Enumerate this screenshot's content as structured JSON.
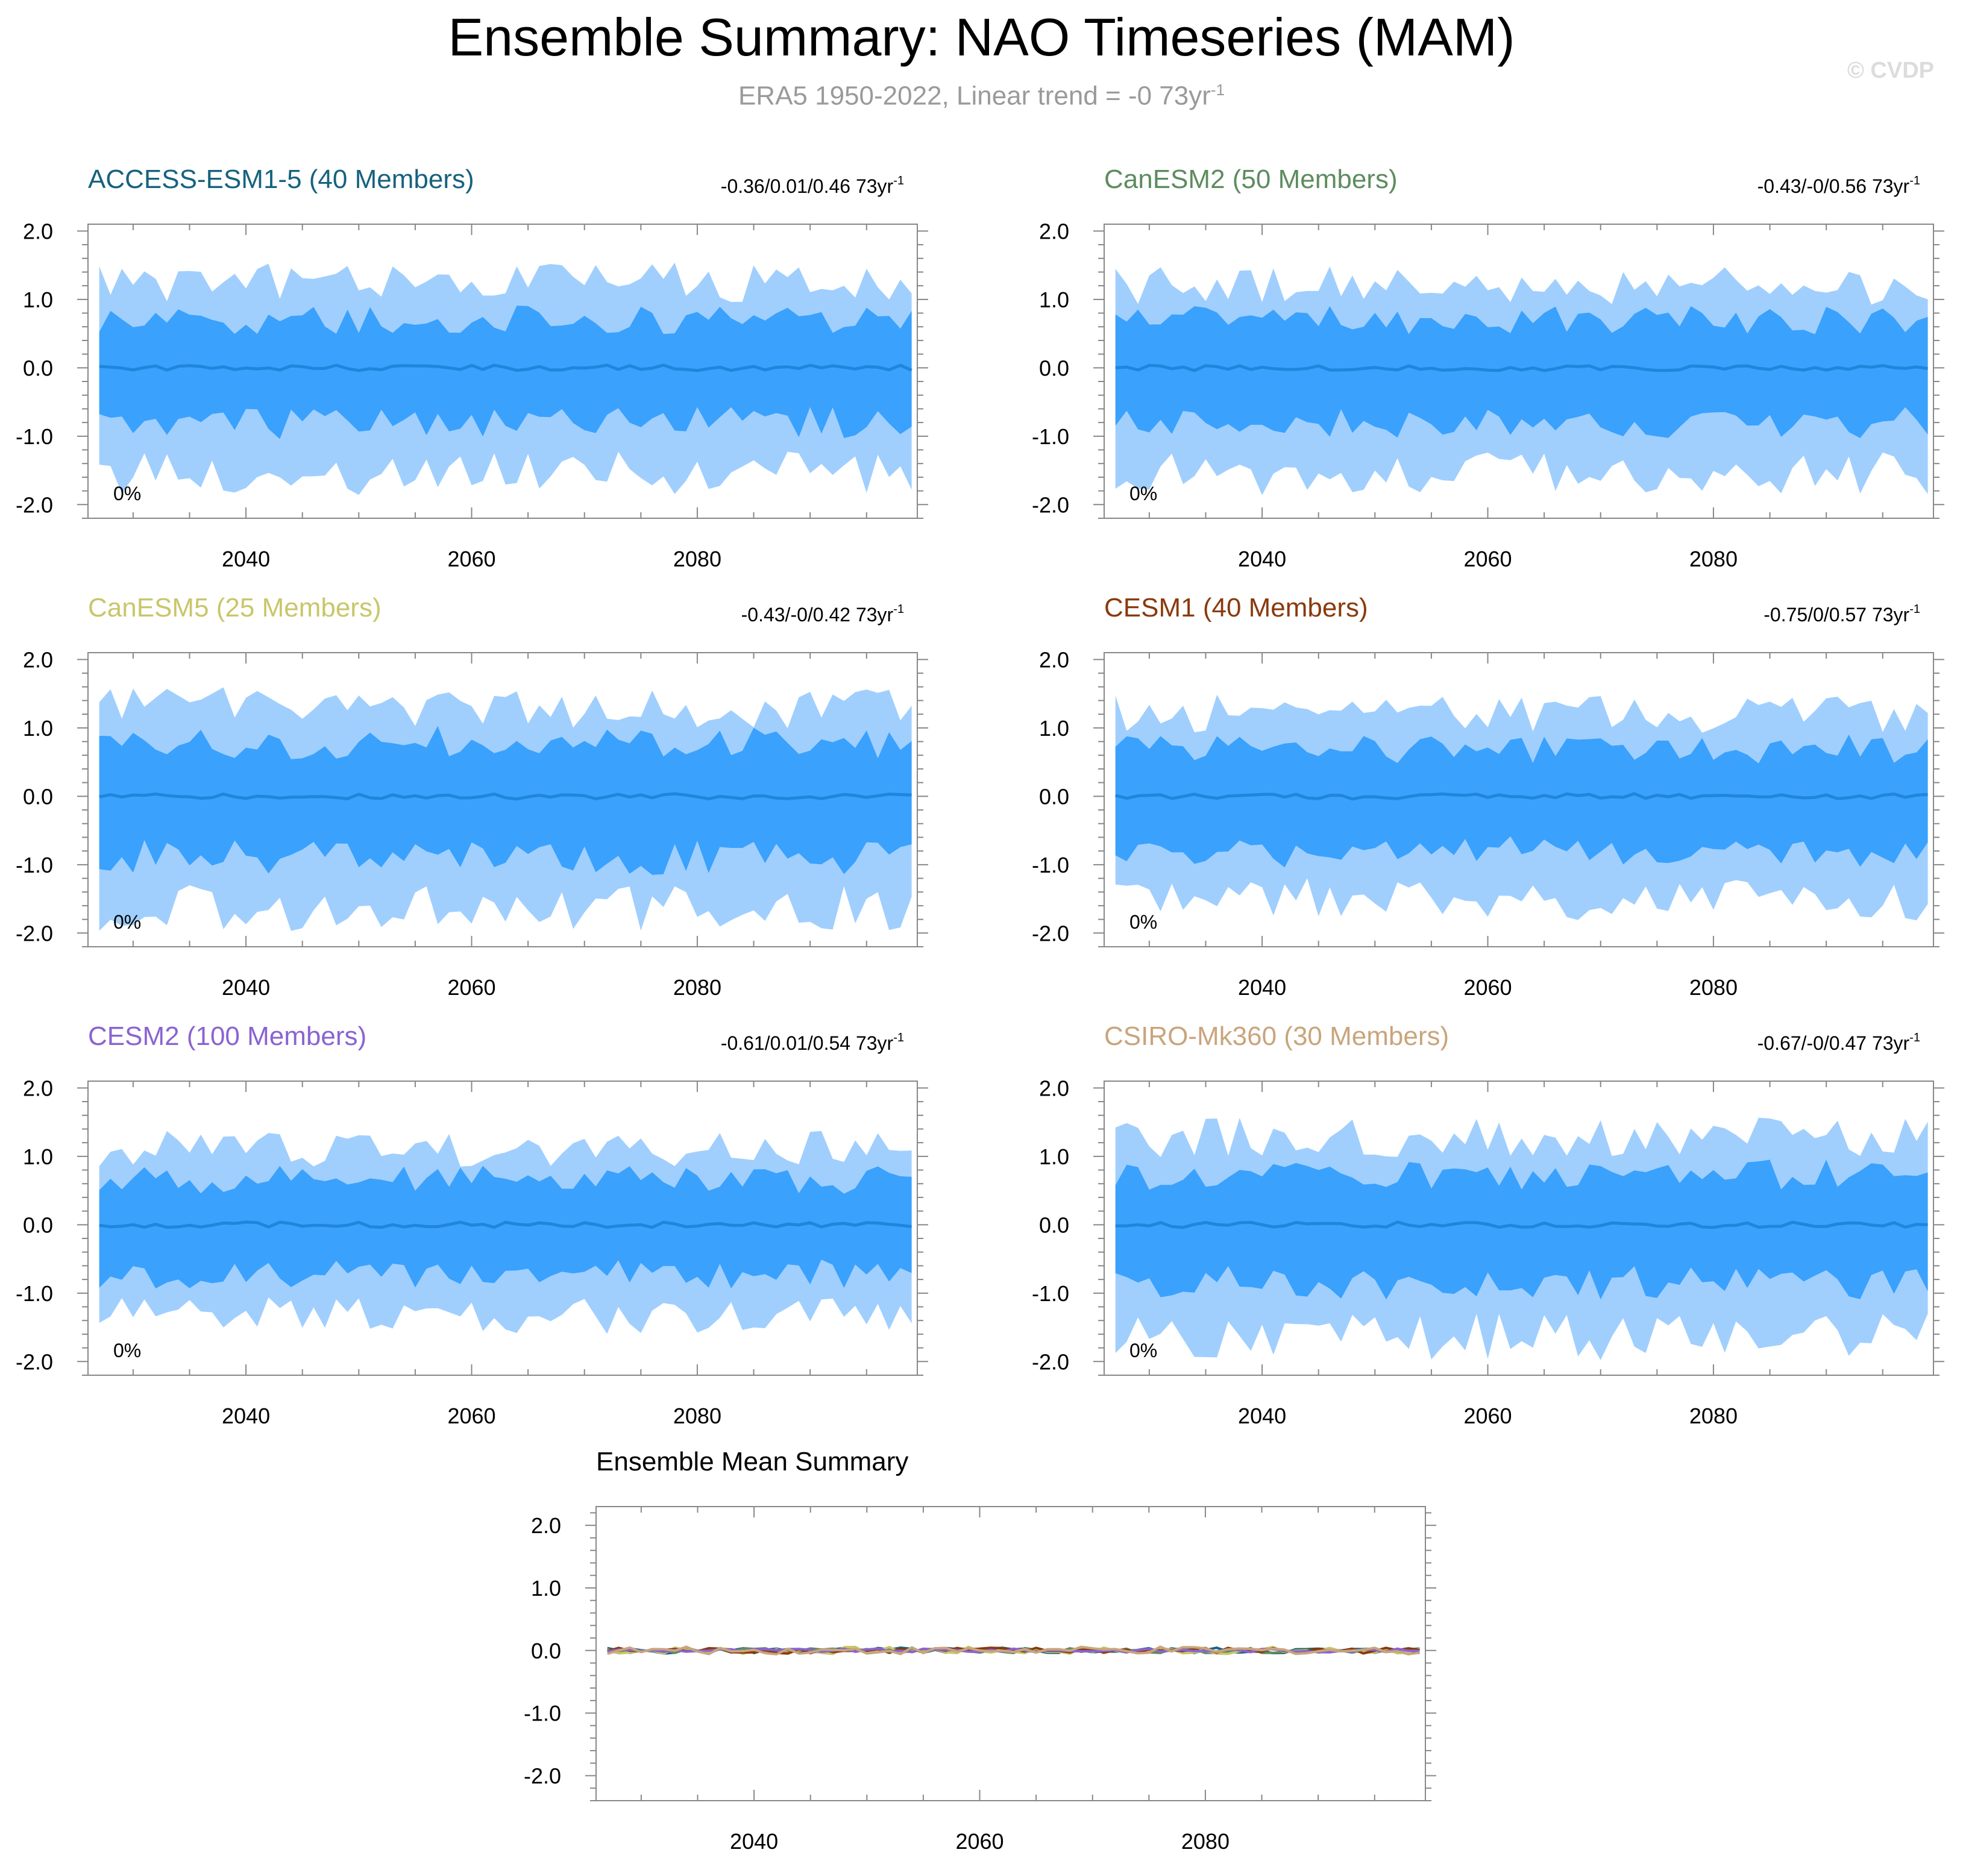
{
  "title": "Ensemble Summary: NAO Timeseries (MAM)",
  "subtitle": "ERA5 1950-2022, Linear trend = -0 73yr",
  "subtitle_superscript": "-1",
  "copyright": "© CVDP",
  "colors": {
    "outer_band": "#a0cffe",
    "inner_band": "#3aa1fd",
    "mean_line": "#1f86dc",
    "axis": "#888888"
  },
  "chart_data": [
    {
      "type": "area",
      "id": "access",
      "title": "ACCESS-ESM1-5 (40 Members)",
      "title_color": "#17627e",
      "stat_label": "-0.36/0.01/0.46 73yr",
      "stat_superscript": "-1",
      "percent_label": "0%",
      "x_range": [
        2027,
        2099
      ],
      "xlim": [
        2026,
        2099.5
      ],
      "ylim": [
        -2.2,
        2.1
      ],
      "x_ticks": [
        "2040",
        "2060",
        "2080"
      ],
      "y_ticks": [
        "2.0",
        "1.0",
        "0.0",
        "-1.0",
        "-2.0"
      ],
      "outer_band_range": [
        -1.7,
        1.4
      ],
      "inner_band_range": [
        -0.95,
        0.8
      ],
      "seed": 11
    },
    {
      "type": "area",
      "id": "canesm2",
      "title": "CanESM2 (50 Members)",
      "title_color": "#5d8c5f",
      "stat_label": "-0.43/-0/0.56 73yr",
      "stat_superscript": "-1",
      "percent_label": "0%",
      "x_range": [
        2027,
        2099
      ],
      "xlim": [
        2026,
        2099.5
      ],
      "ylim": [
        -2.2,
        2.1
      ],
      "x_ticks": [
        "2040",
        "2060",
        "2080"
      ],
      "y_ticks": [
        "2.0",
        "1.0",
        "0.0",
        "-1.0",
        "-2.0"
      ],
      "outer_band_range": [
        -1.7,
        1.35
      ],
      "inner_band_range": [
        -0.95,
        0.8
      ],
      "seed": 23
    },
    {
      "type": "area",
      "id": "canesm5",
      "title": "CanESM5 (25 Members)",
      "title_color": "#c9c66a",
      "stat_label": "-0.43/-0/0.42 73yr",
      "stat_superscript": "-1",
      "percent_label": "0%",
      "x_range": [
        2027,
        2099
      ],
      "xlim": [
        2026,
        2099.5
      ],
      "ylim": [
        -2.2,
        2.1
      ],
      "x_ticks": [
        "2040",
        "2060",
        "2080"
      ],
      "y_ticks": [
        "2.0",
        "1.0",
        "0.0",
        "-1.0",
        "-2.0"
      ],
      "outer_band_range": [
        -1.8,
        1.45
      ],
      "inner_band_range": [
        -1.05,
        0.9
      ],
      "seed": 37
    },
    {
      "type": "area",
      "id": "cesm1",
      "title": "CESM1 (40 Members)",
      "title_color": "#8a3a0c",
      "stat_label": "-0.75/0/0.57 73yr",
      "stat_superscript": "-1",
      "percent_label": "0%",
      "x_range": [
        2027,
        2099
      ],
      "xlim": [
        2026,
        2099.5
      ],
      "ylim": [
        -2.2,
        2.1
      ],
      "x_ticks": [
        "2040",
        "2060",
        "2080"
      ],
      "y_ticks": [
        "2.0",
        "1.0",
        "0.0",
        "-1.0",
        "-2.0"
      ],
      "outer_band_range": [
        -1.65,
        1.35
      ],
      "inner_band_range": [
        -0.95,
        0.8
      ],
      "seed": 41
    },
    {
      "type": "area",
      "id": "cesm2",
      "title": "CESM2 (100 Members)",
      "title_color": "#8a63d2",
      "stat_label": "-0.61/0.01/0.54 73yr",
      "stat_superscript": "-1",
      "percent_label": "0%",
      "x_range": [
        2027,
        2099
      ],
      "xlim": [
        2026,
        2099.5
      ],
      "ylim": [
        -2.2,
        2.1
      ],
      "x_ticks": [
        "2040",
        "2060",
        "2080"
      ],
      "y_ticks": [
        "2.0",
        "1.0",
        "0.0",
        "-1.0",
        "-2.0"
      ],
      "outer_band_range": [
        -1.45,
        1.25
      ],
      "inner_band_range": [
        -0.85,
        0.75
      ],
      "seed": 53
    },
    {
      "type": "area",
      "id": "csiro",
      "title": "CSIRO-Mk360 (30 Members)",
      "title_color": "#c9a57c",
      "stat_label": "-0.67/-0/0.47 73yr",
      "stat_superscript": "-1",
      "percent_label": "0%",
      "x_range": [
        2027,
        2099
      ],
      "xlim": [
        2026,
        2099.5
      ],
      "ylim": [
        -2.2,
        2.1
      ],
      "x_ticks": [
        "2040",
        "2060",
        "2080"
      ],
      "y_ticks": [
        "2.0",
        "1.0",
        "0.0",
        "-1.0",
        "-2.0"
      ],
      "outer_band_range": [
        -1.8,
        1.45
      ],
      "inner_band_range": [
        -1.0,
        0.85
      ],
      "seed": 67
    },
    {
      "type": "line",
      "id": "ensmean",
      "title": "Ensemble Mean Summary",
      "title_color": "#000000",
      "x_range": [
        2027,
        2099
      ],
      "xlim": [
        2026,
        2099.5
      ],
      "ylim": [
        -2.4,
        2.3
      ],
      "x_ticks": [
        "2040",
        "2060",
        "2080"
      ],
      "y_ticks": [
        "2.0",
        "1.0",
        "0.0",
        "-1.0",
        "-2.0"
      ],
      "series": [
        {
          "name": "ACCESS-ESM1-5",
          "color": "#17627e",
          "amplitude": 0.05,
          "seed": 5
        },
        {
          "name": "CanESM2",
          "color": "#5d8c5f",
          "amplitude": 0.04,
          "seed": 6
        },
        {
          "name": "CanESM5",
          "color": "#c9c66a",
          "amplitude": 0.06,
          "seed": 7
        },
        {
          "name": "CESM1",
          "color": "#8a3a0c",
          "amplitude": 0.05,
          "seed": 8
        },
        {
          "name": "CESM2",
          "color": "#8a63d2",
          "amplitude": 0.03,
          "seed": 9
        },
        {
          "name": "CSIRO-Mk360",
          "color": "#c9a57c",
          "amplitude": 0.06,
          "seed": 10
        }
      ]
    }
  ]
}
